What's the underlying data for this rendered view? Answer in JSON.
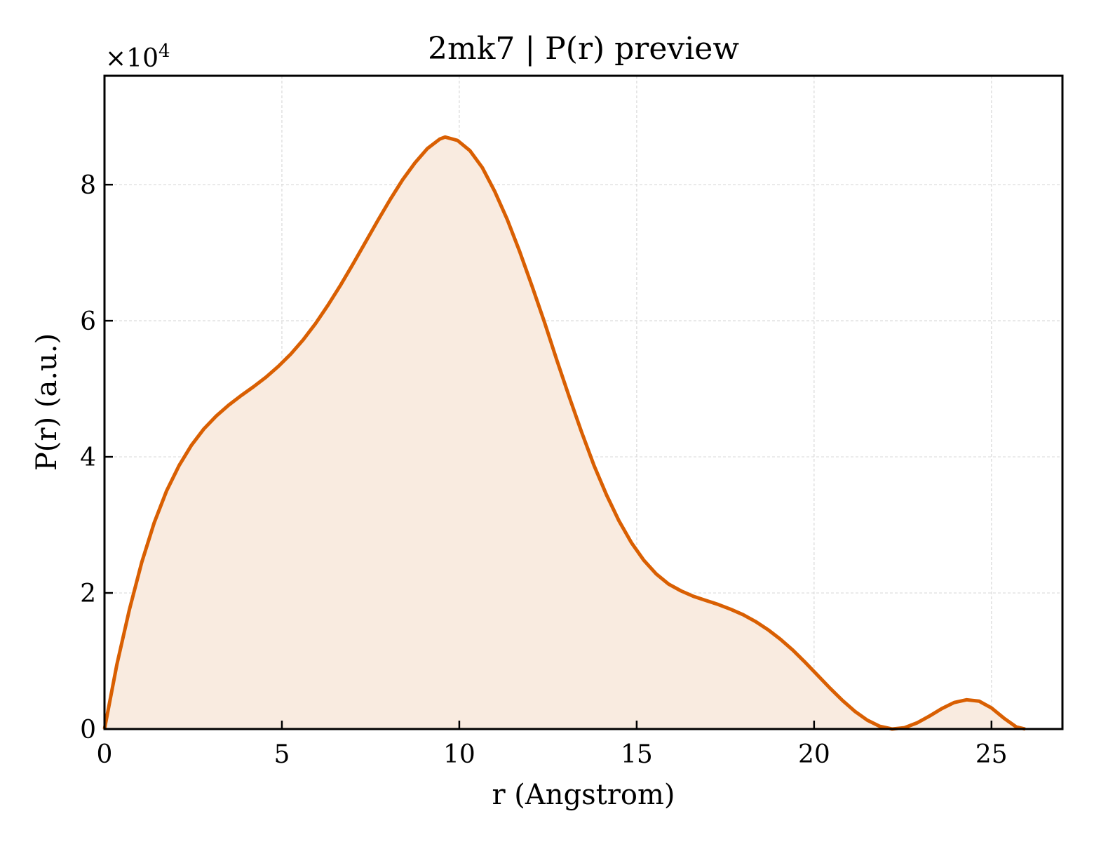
{
  "chart_data": {
    "type": "area",
    "title": "2mk7 | P(r) preview",
    "xlabel": "r (Angstrom)",
    "ylabel": "P(r) (a.u.)",
    "y_scale_label_prefix": "×10",
    "y_scale_label_exponent": "4",
    "y_multiplier": 10000,
    "xlim": [
      0,
      27
    ],
    "ylim": [
      0,
      96000
    ],
    "xticks": [
      0,
      5,
      10,
      15,
      20,
      25
    ],
    "xtick_labels": [
      "0",
      "5",
      "10",
      "15",
      "20",
      "25"
    ],
    "yticks": [
      0,
      20000,
      40000,
      60000,
      80000
    ],
    "ytick_labels": [
      "0",
      "2",
      "4",
      "6",
      "8"
    ],
    "grid": true,
    "legend": "none",
    "colors": {
      "line": "#d95f02",
      "fill": "#f9ebe0",
      "grid": "#d9d9d9",
      "axes": "#000000"
    },
    "series": [
      {
        "x": [
          0,
          0.35,
          0.7,
          1.05,
          1.4,
          1.75,
          2.1,
          2.45,
          2.8,
          3.15,
          3.5,
          3.85,
          4.2,
          4.55,
          4.9,
          5.25,
          5.6,
          5.95,
          6.3,
          6.65,
          7.0,
          7.35,
          7.7,
          8.05,
          8.4,
          8.75,
          9.1,
          9.45,
          9.6,
          9.95,
          10.3,
          10.65,
          11.0,
          11.35,
          11.7,
          12.05,
          12.4,
          12.75,
          13.1,
          13.45,
          13.8,
          14.15,
          14.5,
          14.85,
          15.2,
          15.55,
          15.9,
          16.25,
          16.6,
          16.95,
          17.3,
          17.65,
          18.0,
          18.35,
          18.7,
          19.05,
          19.4,
          19.75,
          20.1,
          20.45,
          20.8,
          21.15,
          21.5,
          21.85,
          22.2,
          22.55,
          22.9,
          23.25,
          23.6,
          23.95,
          24.3,
          24.65,
          25.0,
          25.35,
          25.7,
          25.95
        ],
        "y": [
          0,
          9500,
          17500,
          24500,
          30300,
          35000,
          38700,
          41700,
          44100,
          46000,
          47600,
          49000,
          50300,
          51700,
          53300,
          55100,
          57200,
          59600,
          62300,
          65200,
          68300,
          71500,
          74700,
          77800,
          80700,
          83200,
          85300,
          86700,
          87000,
          86500,
          85000,
          82500,
          79000,
          74900,
          70200,
          65100,
          59800,
          54200,
          48800,
          43600,
          38700,
          34400,
          30600,
          27400,
          24800,
          22800,
          21300,
          20300,
          19500,
          18900,
          18300,
          17600,
          16800,
          15800,
          14600,
          13200,
          11600,
          9800,
          7900,
          6000,
          4200,
          2600,
          1300,
          400,
          0,
          200,
          900,
          1900,
          3000,
          3900,
          4300,
          4100,
          3100,
          1600,
          300,
          0
        ]
      }
    ]
  }
}
